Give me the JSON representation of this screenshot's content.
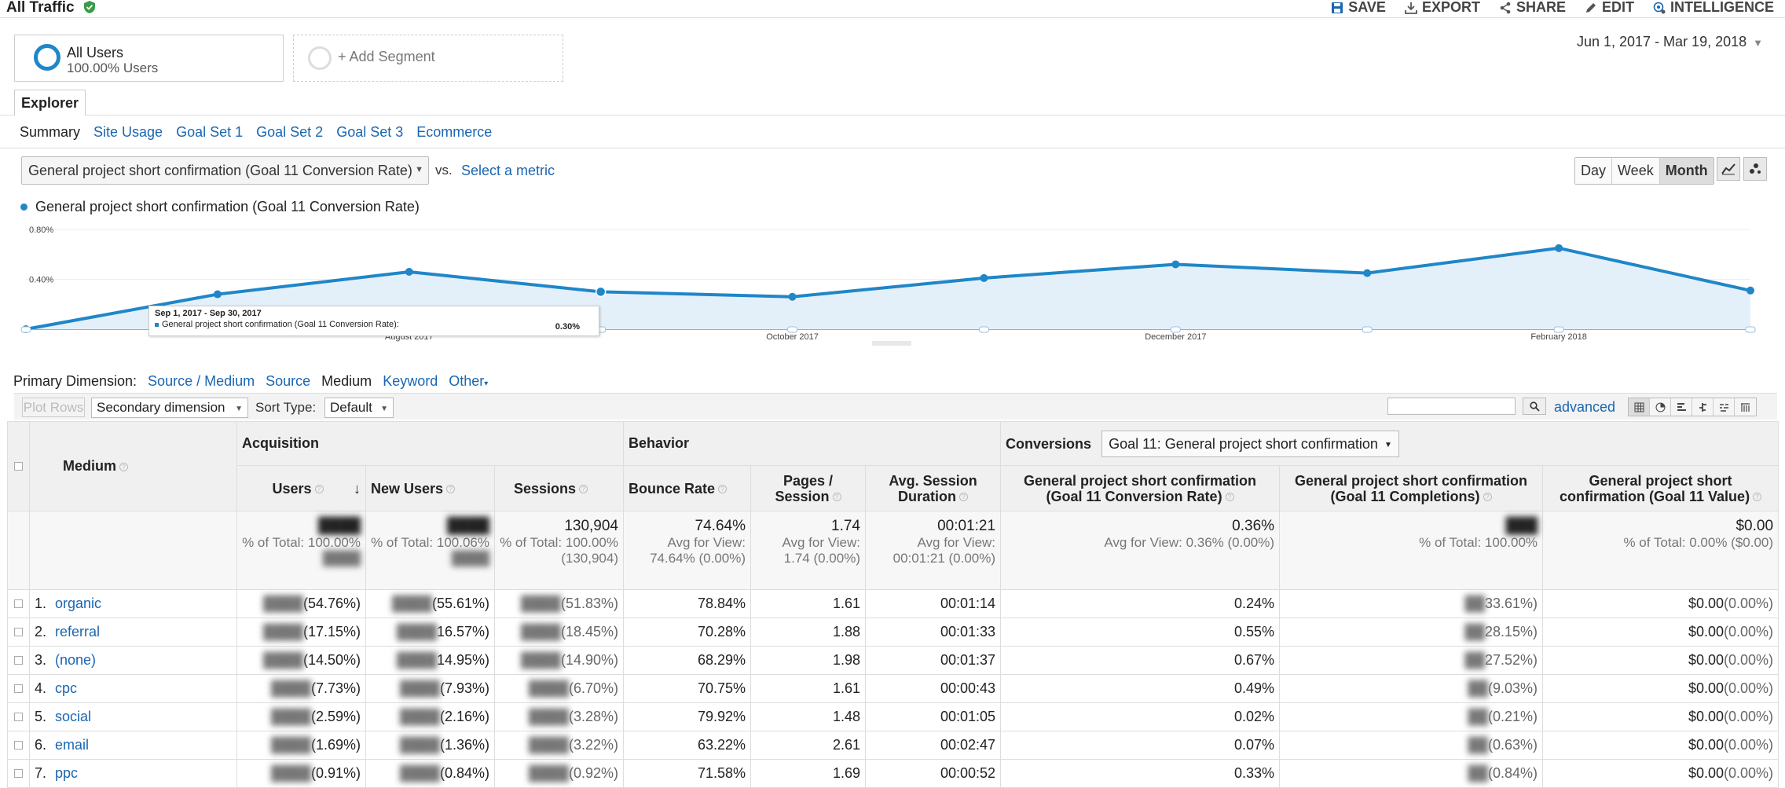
{
  "header": {
    "title": "All Traffic",
    "actions": {
      "save": "SAVE",
      "export": "EXPORT",
      "share": "SHARE",
      "edit": "EDIT",
      "intelligence": "INTELLIGENCE"
    }
  },
  "segments": {
    "all_users": {
      "name": "All Users",
      "sub": "100.00% Users"
    },
    "add": "+ Add Segment"
  },
  "date_range": "Jun 1, 2017 - Mar 19, 2018",
  "tab": "Explorer",
  "subtabs": [
    "Summary",
    "Site Usage",
    "Goal Set 1",
    "Goal Set 2",
    "Goal Set 3",
    "Ecommerce"
  ],
  "metric": {
    "selected": "General project short confirmation (Goal 11 Conversion Rate)",
    "vs": "vs.",
    "select_metric": "Select a metric"
  },
  "period_buttons": [
    "Day",
    "Week",
    "Month"
  ],
  "legend_label": "General project short confirmation (Goal 11 Conversion Rate)",
  "chart_data": {
    "type": "line",
    "title": "",
    "series": [
      {
        "name": "General project short confirmation (Goal 11 Conversion Rate)",
        "x": [
          "Jun 2017",
          "Jul 2017",
          "Aug 2017",
          "Sep 2017",
          "Oct 2017",
          "Nov 2017",
          "Dec 2017",
          "Jan 2018",
          "Feb 2018",
          "Mar 2018"
        ],
        "values": [
          0.0,
          0.28,
          0.46,
          0.3,
          0.26,
          0.41,
          0.52,
          0.45,
          0.65,
          0.31
        ]
      }
    ],
    "y_ticks": [
      "0.80%",
      "0.40%"
    ],
    "x_labels": [
      "August 2017",
      "October 2017",
      "December 2017",
      "February 2018"
    ],
    "ylim": [
      0,
      0.8
    ],
    "grid": true,
    "tooltip": {
      "date": "Sep 1, 2017 - Sep 30, 2017",
      "label": "General project short confirmation (Goal 11 Conversion Rate):",
      "value": "0.30%"
    }
  },
  "primary_dimension": {
    "label": "Primary Dimension:",
    "options": [
      "Source / Medium",
      "Source",
      "Medium",
      "Keyword",
      "Other"
    ],
    "selected": "Medium"
  },
  "toolbar": {
    "plot_rows": "Plot Rows",
    "secondary_dimension": "Secondary dimension",
    "sort_type_label": "Sort Type:",
    "sort_type": "Default",
    "advanced": "advanced"
  },
  "table": {
    "dim_header": "Medium",
    "groups": {
      "acquisition": "Acquisition",
      "behavior": "Behavior",
      "conversions": "Conversions"
    },
    "conv_select": "Goal 11: General project short confirmation",
    "columns": {
      "users": "Users",
      "new_users": "New Users",
      "sessions": "Sessions",
      "bounce_rate": "Bounce Rate",
      "pages_session": "Pages / Session",
      "avg_duration": "Avg. Session Duration",
      "conv_rate": "General project short confirmation (Goal 11 Conversion Rate)",
      "completions": "General project short confirmation (Goal 11 Completions)",
      "value": "General project short confirmation (Goal 11 Value)"
    },
    "totals": {
      "users_sub": "% of Total: 100.00%",
      "new_users_sub": "% of Total: 100.06%",
      "sessions": "130,904",
      "sessions_sub": "% of Total: 100.00% (130,904)",
      "bounce_rate": "74.64%",
      "bounce_sub": "Avg for View: 74.64% (0.00%)",
      "pages_session": "1.74",
      "pages_sub": "Avg for View: 1.74 (0.00%)",
      "avg_duration": "00:01:21",
      "duration_sub": "Avg for View: 00:01:21 (0.00%)",
      "conv_rate": "0.36%",
      "conv_sub": "Avg for View: 0.36% (0.00%)",
      "completions_sub": "% of Total: 100.00%",
      "value": "$0.00",
      "value_sub": "% of Total: 0.00% ($0.00)"
    },
    "rows": [
      {
        "num": "1.",
        "medium": "organic",
        "users_pct": "(54.76%)",
        "new_users_pct": "(55.61%)",
        "sessions_pct": "(51.83%)",
        "bounce": "78.84%",
        "pages": "1.61",
        "duration": "00:01:14",
        "conv": "0.24%",
        "comp_pct": "33.61%)",
        "value": "$0.00",
        "value_pct": "(0.00%)"
      },
      {
        "num": "2.",
        "medium": "referral",
        "users_pct": "(17.15%)",
        "new_users_pct": "16.57%)",
        "sessions_pct": "(18.45%)",
        "bounce": "70.28%",
        "pages": "1.88",
        "duration": "00:01:33",
        "conv": "0.55%",
        "comp_pct": "28.15%)",
        "value": "$0.00",
        "value_pct": "(0.00%)"
      },
      {
        "num": "3.",
        "medium": "(none)",
        "users_pct": "(14.50%)",
        "new_users_pct": "14.95%)",
        "sessions_pct": "(14.90%)",
        "bounce": "68.29%",
        "pages": "1.98",
        "duration": "00:01:37",
        "conv": "0.67%",
        "comp_pct": "27.52%)",
        "value": "$0.00",
        "value_pct": "(0.00%)"
      },
      {
        "num": "4.",
        "medium": "cpc",
        "users_pct": "(7.73%)",
        "new_users_pct": "(7.93%)",
        "sessions_pct": "(6.70%)",
        "bounce": "70.75%",
        "pages": "1.61",
        "duration": "00:00:43",
        "conv": "0.49%",
        "comp_pct": "(9.03%)",
        "value": "$0.00",
        "value_pct": "(0.00%)"
      },
      {
        "num": "5.",
        "medium": "social",
        "users_pct": "(2.59%)",
        "new_users_pct": "(2.16%)",
        "sessions_pct": "(3.28%)",
        "bounce": "79.92%",
        "pages": "1.48",
        "duration": "00:01:05",
        "conv": "0.02%",
        "comp_pct": "(0.21%)",
        "value": "$0.00",
        "value_pct": "(0.00%)"
      },
      {
        "num": "6.",
        "medium": "email",
        "users_pct": "(1.69%)",
        "new_users_pct": "(1.36%)",
        "sessions_pct": "(3.22%)",
        "bounce": "63.22%",
        "pages": "2.61",
        "duration": "00:02:47",
        "conv": "0.07%",
        "comp_pct": "(0.63%)",
        "value": "$0.00",
        "value_pct": "(0.00%)"
      },
      {
        "num": "7.",
        "medium": "ppc",
        "users_pct": "(0.91%)",
        "new_users_pct": "(0.84%)",
        "sessions_pct": "(0.92%)",
        "bounce": "71.58%",
        "pages": "1.69",
        "duration": "00:00:52",
        "conv": "0.33%",
        "comp_pct": "(0.84%)",
        "value": "$0.00",
        "value_pct": "(0.00%)"
      }
    ]
  },
  "colors": {
    "accent": "#1f86c8",
    "link": "#1a66b1",
    "area_fill": "#e4f0f9"
  }
}
